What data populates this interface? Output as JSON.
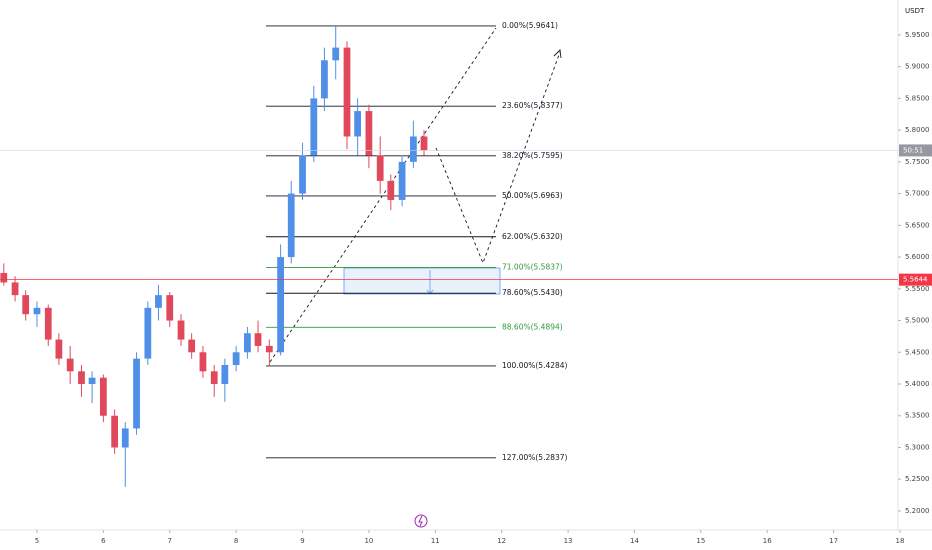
{
  "chart_data": {
    "type": "candlestick",
    "unit": "USDT",
    "up_color": "#4f8fe8",
    "down_color": "#e0485c",
    "x": [
      4.5,
      4.67,
      4.83,
      5,
      5.17,
      5.33,
      5.5,
      5.67,
      5.83,
      6,
      6.17,
      6.33,
      6.5,
      6.67,
      6.83,
      7,
      7.17,
      7.33,
      7.5,
      7.67,
      7.83,
      8,
      8.17,
      8.33,
      8.5,
      8.67,
      8.83,
      9,
      9.17,
      9.33,
      9.5,
      9.67,
      9.83,
      10,
      10.17,
      10.33,
      10.5,
      10.67,
      10.83
    ],
    "open": [
      5.575,
      5.56,
      5.54,
      5.51,
      5.52,
      5.47,
      5.44,
      5.42,
      5.4,
      5.41,
      5.35,
      5.3,
      5.33,
      5.44,
      5.52,
      5.54,
      5.5,
      5.47,
      5.45,
      5.42,
      5.4,
      5.43,
      5.45,
      5.48,
      5.46,
      5.45,
      5.6,
      5.7,
      5.76,
      5.85,
      5.91,
      5.93,
      5.79,
      5.83,
      5.76,
      5.72,
      5.69,
      5.75,
      5.79
    ],
    "high": [
      5.59,
      5.57,
      5.548,
      5.53,
      5.525,
      5.48,
      5.46,
      5.43,
      5.42,
      5.415,
      5.36,
      5.34,
      5.45,
      5.53,
      5.556,
      5.545,
      5.51,
      5.48,
      5.46,
      5.43,
      5.44,
      5.46,
      5.49,
      5.5,
      5.47,
      5.62,
      5.72,
      5.78,
      5.87,
      5.93,
      5.9641,
      5.94,
      5.85,
      5.84,
      5.79,
      5.73,
      5.76,
      5.815,
      5.8
    ],
    "low": [
      5.555,
      5.53,
      5.5,
      5.49,
      5.46,
      5.43,
      5.4,
      5.38,
      5.37,
      5.34,
      5.29,
      5.238,
      5.32,
      5.43,
      5.5,
      5.49,
      5.46,
      5.44,
      5.41,
      5.38,
      5.372,
      5.42,
      5.44,
      5.45,
      5.4284,
      5.445,
      5.59,
      5.69,
      5.75,
      5.83,
      5.88,
      5.77,
      5.76,
      5.74,
      5.7,
      5.674,
      5.68,
      5.74,
      5.76
    ],
    "close": [
      5.56,
      5.54,
      5.51,
      5.52,
      5.47,
      5.44,
      5.42,
      5.4,
      5.41,
      5.35,
      5.3,
      5.33,
      5.44,
      5.52,
      5.54,
      5.5,
      5.47,
      5.45,
      5.42,
      5.4,
      5.43,
      5.45,
      5.48,
      5.46,
      5.45,
      5.6,
      5.7,
      5.76,
      5.85,
      5.91,
      5.93,
      5.79,
      5.83,
      5.76,
      5.72,
      5.69,
      5.75,
      5.79,
      5.768
    ],
    "xlim": [
      4.443,
      17.97
    ],
    "xticks": [
      5,
      6,
      7,
      8,
      9,
      10,
      11,
      12,
      13,
      14,
      15,
      16,
      17,
      18
    ],
    "ylim": [
      5.17,
      6.005
    ],
    "yticks": [
      {
        "value": 5.2,
        "label": "5.2000"
      },
      {
        "value": 5.25,
        "label": "5.2500"
      },
      {
        "value": 5.3,
        "label": "5.3000"
      },
      {
        "value": 5.35,
        "label": "5.3500"
      },
      {
        "value": 5.4,
        "label": "5.4000"
      },
      {
        "value": 5.45,
        "label": "5.4500"
      },
      {
        "value": 5.5,
        "label": "5.5000"
      },
      {
        "value": 5.55,
        "label": "5.5500"
      },
      {
        "value": 5.6,
        "label": "5.6000"
      },
      {
        "value": 5.65,
        "label": "5.6500"
      },
      {
        "value": 5.7,
        "label": "5.7000"
      },
      {
        "value": 5.75,
        "label": "5.7500"
      },
      {
        "value": 5.8,
        "label": "5.8000"
      },
      {
        "value": 5.85,
        "label": "5.8500"
      },
      {
        "value": 5.9,
        "label": "5.9000"
      },
      {
        "value": 5.95,
        "label": "5.9500"
      }
    ],
    "levels": [
      {
        "label": "0.00%(5.9641)",
        "value": 5.9641,
        "color": "#131722"
      },
      {
        "label": "23.60%(5.8377)",
        "value": 5.8377,
        "color": "#131722"
      },
      {
        "label": "38.20%(5.7595)",
        "value": 5.7595,
        "color": "#131722"
      },
      {
        "label": "50.00%(5.6963)",
        "value": 5.6963,
        "color": "#131722"
      },
      {
        "label": "62.00%(5.6320)",
        "value": 5.632,
        "color": "#131722"
      },
      {
        "label": "71.00%(5.5837)",
        "value": 5.5837,
        "color": "#2e9a3a"
      },
      {
        "label": "78.60%(5.5430)",
        "value": 5.543,
        "color": "#131722"
      },
      {
        "label": "88.60%(5.4894)",
        "value": 5.4894,
        "color": "#2e9a3a"
      },
      {
        "label": "100.00%(5.4284)",
        "value": 5.4284,
        "color": "#131722"
      },
      {
        "label": "127.00%(5.2837)",
        "value": 5.2837,
        "color": "#131722"
      }
    ],
    "price_line": {
      "value": 5.5644,
      "label": "5.5644",
      "color": "#f23645"
    },
    "countdown": {
      "value": 5.768,
      "label": "50:51",
      "color": "#9598a1"
    },
    "grid": false
  }
}
